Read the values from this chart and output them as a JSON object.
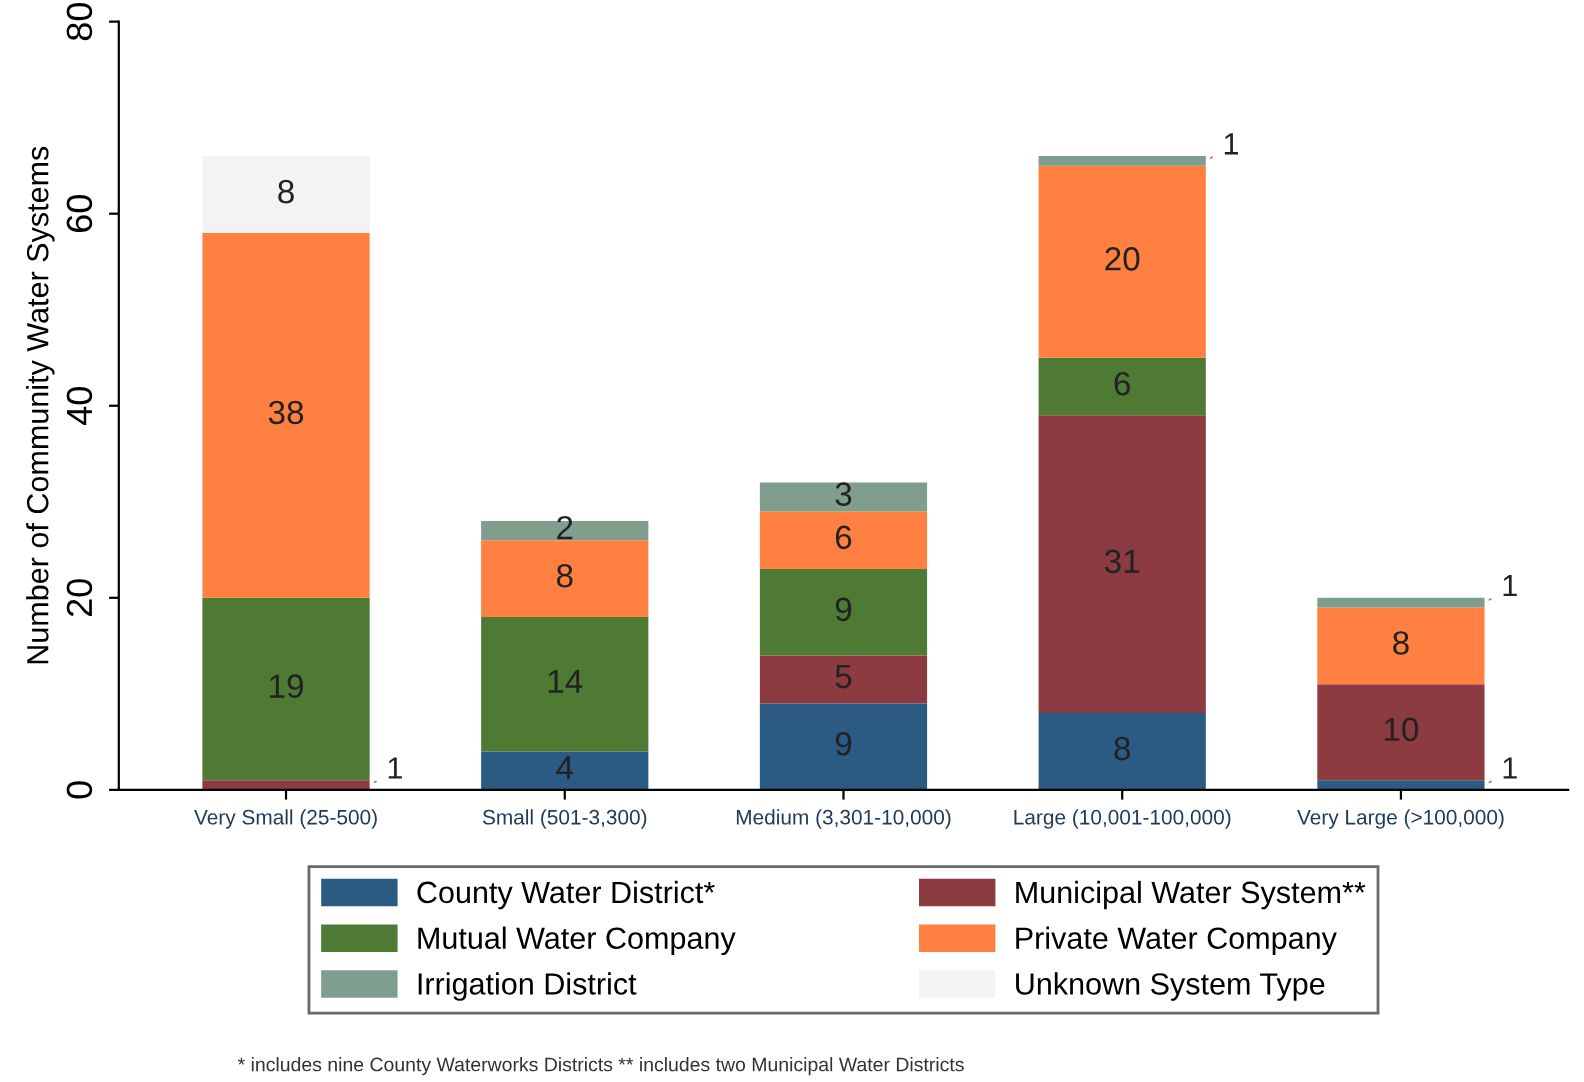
{
  "chart_data": {
    "type": "bar",
    "stacked": true,
    "ylabel": "Number of Community Water Systems",
    "categories": [
      "Very Small (25-500)",
      "Small (501-3,300)",
      "Medium (3,301-10,000)",
      "Large (10,001-100,000)",
      "Very Large (>100,000)"
    ],
    "series": [
      {
        "name": "County Water District*",
        "color": "#2b5a82",
        "values": [
          0,
          4,
          9,
          8,
          1
        ],
        "value_labels": [
          null,
          "4",
          "9",
          "8",
          "1"
        ]
      },
      {
        "name": "Municipal Water System**",
        "color": "#8c3b40",
        "values": [
          1,
          0,
          5,
          31,
          10
        ],
        "value_labels": [
          "1",
          null,
          "5",
          "31",
          "10"
        ]
      },
      {
        "name": "Mutual Water Company",
        "color": "#4e7a34",
        "values": [
          19,
          14,
          9,
          6,
          0
        ],
        "value_labels": [
          "19",
          "14",
          "9",
          "6",
          null
        ]
      },
      {
        "name": "Private Water Company",
        "color": "#ff8040",
        "values": [
          38,
          8,
          6,
          20,
          8
        ],
        "value_labels": [
          "38",
          "8",
          "6",
          "20",
          "8"
        ]
      },
      {
        "name": "Irrigation District",
        "color": "#7f9e8e",
        "values": [
          0,
          2,
          3,
          1,
          1
        ],
        "value_labels": [
          null,
          "2",
          "3",
          "1",
          "1"
        ]
      },
      {
        "name": "Unknown System Type",
        "color": "#f3f3f5",
        "values": [
          8,
          0,
          0,
          0,
          0
        ],
        "value_labels": [
          "8",
          null,
          null,
          null,
          null
        ]
      }
    ],
    "ylim": [
      0,
      80
    ],
    "yticks": [
      0,
      20,
      40,
      60,
      80
    ],
    "grid": false,
    "legend": "bottom",
    "annotations": [
      "* includes nine County Waterworks Districts ** includes two Municipal Water Districts"
    ]
  }
}
